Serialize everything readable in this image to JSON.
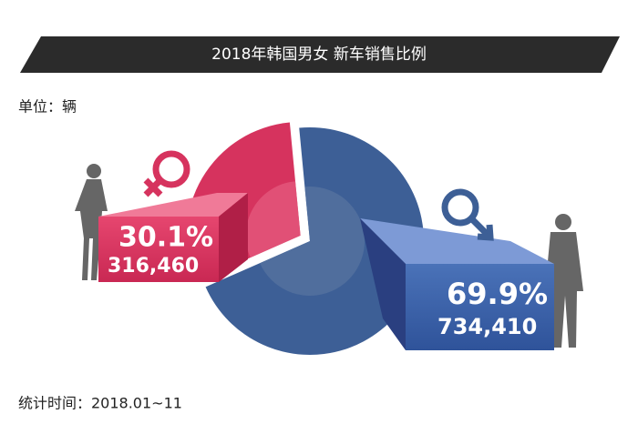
{
  "chart_data": {
    "type": "pie",
    "title": "2018年韩国男女 新车销售比例",
    "unit_label": "单位：辆",
    "footnote": "统计时间：2018.01~11",
    "values": [
      30.1,
      69.9
    ],
    "value_labels": [
      "30.1%",
      "69.9%"
    ],
    "counts": [
      316460,
      734410
    ],
    "count_labels": [
      "316,460",
      "734,410"
    ],
    "colors": [
      "#d6335e",
      "#3d5f96"
    ],
    "inner_colors": [
      "#e4587c",
      "#55729f"
    ]
  }
}
